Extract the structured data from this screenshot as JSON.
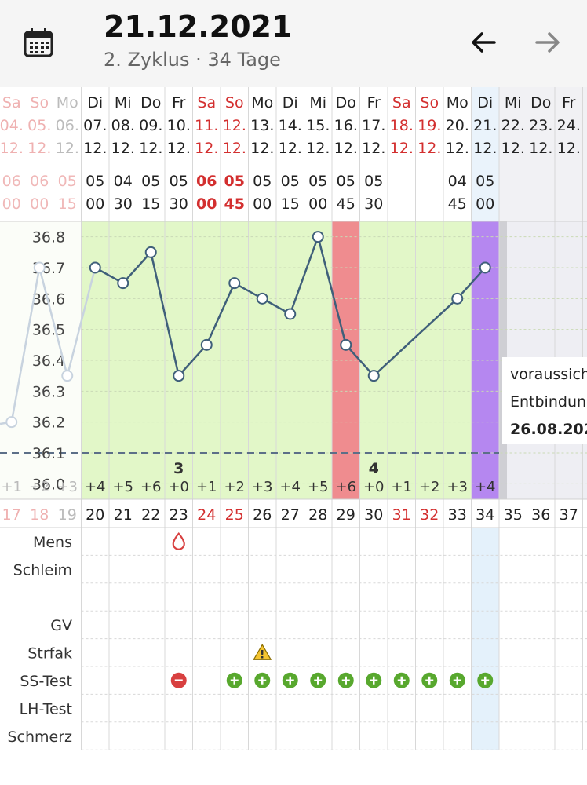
{
  "header": {
    "title": "21.12.2021",
    "subtitle": "2. Zyklus · 34 Tage",
    "calendar_icon": "calendar-icon",
    "back_icon": "arrow-left-icon",
    "forward_icon": "arrow-right-icon"
  },
  "days": [
    {
      "wd": "Sa",
      "d": "04.",
      "m": "12.",
      "t1": "06",
      "t2": "00",
      "cd": "17",
      "red": true,
      "faded": true
    },
    {
      "wd": "So",
      "d": "05.",
      "m": "12.",
      "t1": "06",
      "t2": "00",
      "cd": "18",
      "red": true,
      "faded": true
    },
    {
      "wd": "Mo",
      "d": "06.",
      "m": "12.",
      "t1": "05",
      "t2": "15",
      "cd": "19",
      "red": false,
      "faded": true
    },
    {
      "wd": "Di",
      "d": "07.",
      "m": "12.",
      "t1": "05",
      "t2": "00",
      "cd": "20",
      "red": false
    },
    {
      "wd": "Mi",
      "d": "08.",
      "m": "12.",
      "t1": "04",
      "t2": "30",
      "cd": "21",
      "red": false
    },
    {
      "wd": "Do",
      "d": "09.",
      "m": "12.",
      "t1": "05",
      "t2": "15",
      "cd": "22",
      "red": false
    },
    {
      "wd": "Fr",
      "d": "10.",
      "m": "12.",
      "t1": "05",
      "t2": "30",
      "cd": "23",
      "red": false
    },
    {
      "wd": "Sa",
      "d": "11.",
      "m": "12.",
      "t1": "06",
      "t2": "00",
      "cd": "24",
      "red": true
    },
    {
      "wd": "So",
      "d": "12.",
      "m": "12.",
      "t1": "05",
      "t2": "45",
      "cd": "25",
      "red": true
    },
    {
      "wd": "Mo",
      "d": "13.",
      "m": "12.",
      "t1": "05",
      "t2": "00",
      "cd": "26",
      "red": false
    },
    {
      "wd": "Di",
      "d": "14.",
      "m": "12.",
      "t1": "05",
      "t2": "15",
      "cd": "27",
      "red": false
    },
    {
      "wd": "Mi",
      "d": "15.",
      "m": "12.",
      "t1": "05",
      "t2": "00",
      "cd": "28",
      "red": false
    },
    {
      "wd": "Do",
      "d": "16.",
      "m": "12.",
      "t1": "05",
      "t2": "45",
      "cd": "29",
      "red": false
    },
    {
      "wd": "Fr",
      "d": "17.",
      "m": "12.",
      "t1": "05",
      "t2": "30",
      "cd": "30",
      "red": false
    },
    {
      "wd": "Sa",
      "d": "18.",
      "m": "12.",
      "t1": "",
      "t2": "",
      "cd": "31",
      "red": true
    },
    {
      "wd": "So",
      "d": "19.",
      "m": "12.",
      "t1": "",
      "t2": "",
      "cd": "32",
      "red": true
    },
    {
      "wd": "Mo",
      "d": "20.",
      "m": "12.",
      "t1": "04",
      "t2": "45",
      "cd": "33",
      "red": false
    },
    {
      "wd": "Di",
      "d": "21.",
      "m": "12.",
      "t1": "05",
      "t2": "00",
      "cd": "34",
      "red": false,
      "today": true
    },
    {
      "wd": "Mi",
      "d": "22.",
      "m": "12.",
      "t1": "",
      "t2": "",
      "cd": "35",
      "red": false,
      "future": true
    },
    {
      "wd": "Do",
      "d": "23.",
      "m": "12.",
      "t1": "",
      "t2": "",
      "cd": "36",
      "red": false,
      "future": true
    },
    {
      "wd": "Fr",
      "d": "24.",
      "m": "12.",
      "t1": "",
      "t2": "",
      "cd": "37",
      "red": false,
      "future": true
    }
  ],
  "chart_data": {
    "type": "line",
    "y_ticks": [
      "36.8",
      "36.7",
      "36.6",
      "36.5",
      "36.4",
      "36.3",
      "36.2",
      "36.1",
      "36.0"
    ],
    "ylim": [
      35.95,
      36.85
    ],
    "coverline": 36.1,
    "temps": [
      36.2,
      36.7,
      36.35,
      36.7,
      36.65,
      36.75,
      36.35,
      36.45,
      36.65,
      36.6,
      36.55,
      36.8,
      36.45,
      36.35,
      null,
      null,
      36.6,
      36.7,
      null,
      null,
      null
    ],
    "day_offsets": [
      "+1",
      "+2",
      "+3",
      "+4",
      "+5",
      "+6",
      "+0",
      "+1",
      "+2",
      "+3",
      "+4",
      "+5",
      "+6",
      "+0",
      "+1",
      "+2",
      "+3",
      "+4",
      "",
      "",
      ""
    ],
    "markers": [
      {
        "day": 6,
        "text": "3"
      },
      {
        "day": 13,
        "text": "4"
      }
    ],
    "period_highlight_day": 12,
    "today_highlight_day": 17
  },
  "note": {
    "line1": "voraussich",
    "line2": "Entbindun",
    "line3": "26.08.202"
  },
  "rows": {
    "labels": [
      "Mens",
      "Schleim",
      "",
      "GV",
      "Strfak",
      "SS-Test",
      "LH-Test",
      "Schmerz"
    ]
  },
  "symbols": {
    "mens_day": 6,
    "warning_day": 9,
    "ss_negative_day": 6,
    "ss_positive_days": [
      8,
      9,
      10,
      11,
      12,
      13,
      14,
      15,
      16,
      17
    ]
  },
  "colors": {
    "green_zone": "#e2f7c8",
    "period": "#ef8c8f",
    "today": "#b587f0",
    "line": "#3f5f7a",
    "red_text": "#d32f2f",
    "faded_red": "#efb1b1",
    "positive": "#58a82e",
    "negative": "#d84040",
    "warning": "#f4c430"
  }
}
